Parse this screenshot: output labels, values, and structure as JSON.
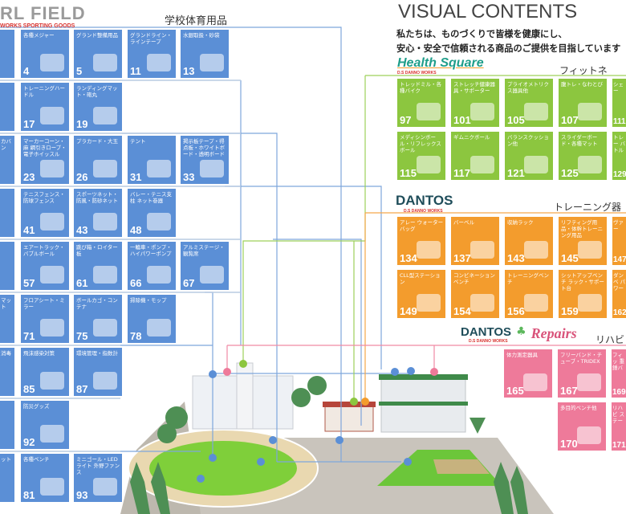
{
  "header": {
    "logo_text": "RL FIELD",
    "logo_sub": "WORKS SPORTING GOODS",
    "section_title": "学校体育用品",
    "visual_title": "VISUAL CONTENTS",
    "tagline_1": "私たちは、ものづくりで皆様を健康にし、",
    "tagline_2": "安心・安全で信頼される商品のご提供を目指しています"
  },
  "brands": {
    "health_square": {
      "logo": "Health Square",
      "sub": "D.S DANNO WORKS",
      "section": "フィットネ",
      "color": "#8cc63f"
    },
    "dantos": {
      "logo": "DANTOS",
      "sub": "D.S DANNO WORKS",
      "section": "トレーニング器",
      "color": "#f39c2d"
    },
    "repairs": {
      "logo": "DANTOS",
      "logo2": "Repairs",
      "sub": "D.S DANNO WORKS",
      "section": "リハビ",
      "color": "#ee7a9a"
    }
  },
  "colors": {
    "school": "#5b8fd6",
    "fitness": "#8cc63f",
    "training": "#f39c2d",
    "rehab": "#ee7a9a"
  },
  "school_tiles": [
    {
      "num": "",
      "label": ""
    },
    {
      "num": "4",
      "label": "各種メジャー"
    },
    {
      "num": "5",
      "label": "グランド整備用品"
    },
    {
      "num": "11",
      "label": "グランドライン・ラインテープ"
    },
    {
      "num": "13",
      "label": "水銀取扱・砂袋"
    },
    {
      "num": "",
      "label": ""
    },
    {
      "num": "17",
      "label": "トレーニングハードル"
    },
    {
      "num": "19",
      "label": "ランディングマット・砲丸"
    },
    {
      "num": "",
      "label": "カバン"
    },
    {
      "num": "23",
      "label": "マーカーコーン・麻 綱引きロープ・電子ホイッスル"
    },
    {
      "num": "26",
      "label": "プラカード・大玉"
    },
    {
      "num": "31",
      "label": "テント"
    },
    {
      "num": "33",
      "label": "掲示板テープ・得点板・ホワイトボード・透明ボード"
    },
    {
      "num": "",
      "label": ""
    },
    {
      "num": "41",
      "label": "テニスフェンス・防球フェンス"
    },
    {
      "num": "43",
      "label": "スポーツネット・防風・防砂ネット"
    },
    {
      "num": "48",
      "label": "バレー・テニス支柱 ネット巻器"
    },
    {
      "num": "",
      "label": ""
    },
    {
      "num": "57",
      "label": "エアートラック・バブルボール"
    },
    {
      "num": "61",
      "label": "跳び箱・ロイター板"
    },
    {
      "num": "66",
      "label": "一輪車・ポンプ・ハイパワーポンプ"
    },
    {
      "num": "67",
      "label": "アルミステージ・観覧席"
    },
    {
      "num": "",
      "label": "マット"
    },
    {
      "num": "71",
      "label": "フロアシート・ミラー"
    },
    {
      "num": "75",
      "label": "ボールカゴ・コンテナ"
    },
    {
      "num": "78",
      "label": "掃除機・モップ"
    },
    {
      "num": "",
      "label": "消毒"
    },
    {
      "num": "85",
      "label": "飛沫感染対策"
    },
    {
      "num": "87",
      "label": "環境管理・指数計"
    },
    {
      "num": "",
      "label": ""
    },
    {
      "num": "92",
      "label": "防災グッズ"
    },
    {
      "num": "",
      "label": "ット"
    },
    {
      "num": "81",
      "label": "各種ベンチ"
    },
    {
      "num": "93",
      "label": "ミニゴール・LEDライト 外野ファンス"
    }
  ],
  "fitness_tiles": [
    {
      "num": "97",
      "label": "トレッドミル・各種バイク"
    },
    {
      "num": "101",
      "label": "ストレッチ健康器具・サポーター"
    },
    {
      "num": "105",
      "label": "プライオメトリクス器具他"
    },
    {
      "num": "107",
      "label": "腹トレ・なわとび"
    },
    {
      "num": "111",
      "label": "シェー"
    },
    {
      "num": "115",
      "label": "メディシンボール・リフレックスボール"
    },
    {
      "num": "117",
      "label": "ギムニクボール"
    },
    {
      "num": "121",
      "label": "バランスクッション他"
    },
    {
      "num": "125",
      "label": "スライダーボード・各種マット"
    },
    {
      "num": "129",
      "label": "トレー バトル"
    }
  ],
  "training_tiles": [
    {
      "num": "134",
      "label": "アレー ウォーターバッグ"
    },
    {
      "num": "137",
      "label": "バーベル"
    },
    {
      "num": "143",
      "label": "収納ラック"
    },
    {
      "num": "145",
      "label": "リフティング用品・体幹トレーニング用品"
    },
    {
      "num": "147",
      "label": "ヴァー"
    },
    {
      "num": "149",
      "label": "CLL型ステーション"
    },
    {
      "num": "154",
      "label": "コンビネーションベンチ"
    },
    {
      "num": "156",
      "label": "トレーニングベンチ"
    },
    {
      "num": "159",
      "label": "シットアップベンチ ラック・サポート台"
    },
    {
      "num": "162",
      "label": "ダンベ パワー"
    }
  ],
  "rehab_tiles": [
    {
      "num": "165",
      "label": "体力測定器具"
    },
    {
      "num": "167",
      "label": "フリーバンド・チューブ・TRIDEX"
    },
    {
      "num": "169",
      "label": "フィッ 重錘バ"
    },
    {
      "num": "170",
      "label": "多目的ベンチ他"
    },
    {
      "num": "171",
      "label": "リハビ ステー"
    }
  ]
}
